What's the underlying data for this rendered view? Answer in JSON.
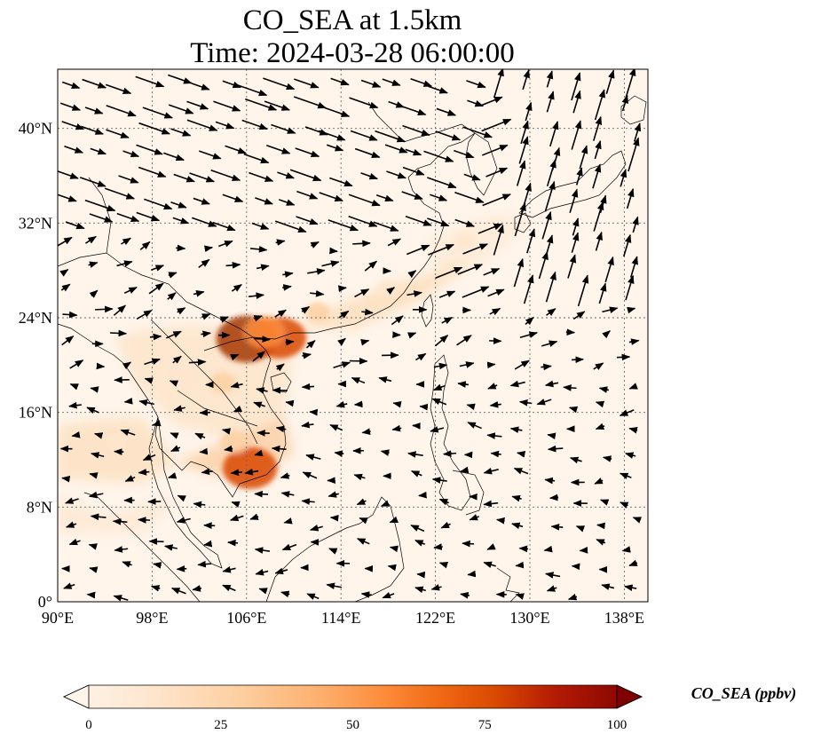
{
  "title": {
    "line1": "CO_SEA at 1.5km",
    "line2": "Time: 2024-03-28 06:00:00"
  },
  "map": {
    "lon_range": [
      90,
      140
    ],
    "lat_range": [
      0,
      45
    ],
    "x_ticks": [
      "90°E",
      "98°E",
      "106°E",
      "114°E",
      "122°E",
      "130°E",
      "138°E"
    ],
    "y_ticks": [
      "0°",
      "8°N",
      "16°N",
      "24°N",
      "32°N",
      "40°N"
    ],
    "grid": true,
    "background_color": "#fff5eb",
    "coast_color": "#000000",
    "plumes": [
      {
        "lon": 106.0,
        "lat": 22.2,
        "value": 92
      },
      {
        "lon": 108.8,
        "lat": 22.3,
        "value": 78
      },
      {
        "lon": 107.5,
        "lat": 22.8,
        "value": 55
      },
      {
        "lon": 106.3,
        "lat": 11.3,
        "value": 80
      },
      {
        "lon": 105.0,
        "lat": 13.5,
        "value": 30
      },
      {
        "lon": 104.0,
        "lat": 18.5,
        "value": 25
      },
      {
        "lon": 112.0,
        "lat": 24.5,
        "value": 22
      },
      {
        "lon": 118.0,
        "lat": 26.5,
        "value": 18
      },
      {
        "lon": 95.0,
        "lat": 13.5,
        "value": 15
      },
      {
        "lon": 100.5,
        "lat": 19.0,
        "value": 18
      },
      {
        "lon": 124.5,
        "lat": 30.5,
        "value": 12
      }
    ],
    "wind_note": "wind vectors shown as black arrows"
  },
  "colorbar": {
    "label": "CO_SEA (ppbv)",
    "ticks": [
      "0",
      "25",
      "50",
      "75",
      "100"
    ],
    "min": 0,
    "max": 100,
    "colors": [
      "#fff5eb",
      "#fee6ce",
      "#fdd0a2",
      "#fdae6b",
      "#fd8d3c",
      "#f16913",
      "#d94801",
      "#a63603",
      "#7f2704"
    ]
  }
}
